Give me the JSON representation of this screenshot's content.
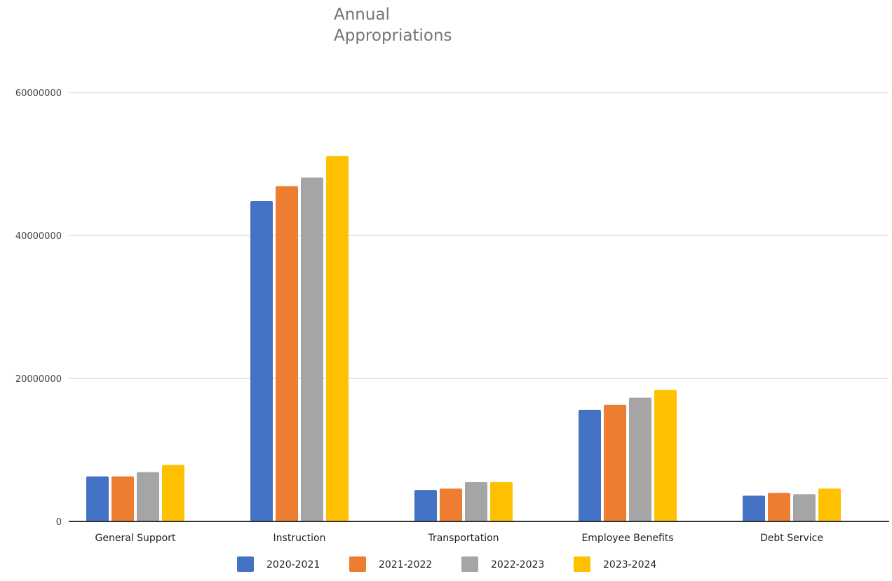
{
  "chart_data": {
    "type": "bar",
    "title": [
      "Annual",
      "Appropriations"
    ],
    "xlabel": "",
    "ylabel": "",
    "categories": [
      "General Support",
      "Instruction",
      "Transportation",
      "Employee Benefits",
      "Debt Service"
    ],
    "series": [
      {
        "name": "2020-2021",
        "color": "#4472C4",
        "values": [
          6300000,
          44800000,
          4400000,
          15600000,
          3600000
        ]
      },
      {
        "name": "2021-2022",
        "color": "#ED7D31",
        "values": [
          6300000,
          46900000,
          4600000,
          16300000,
          4000000
        ]
      },
      {
        "name": "2022-2023",
        "color": "#A5A5A5",
        "values": [
          6900000,
          48100000,
          5500000,
          17300000,
          3800000
        ]
      },
      {
        "name": "2023-2024",
        "color": "#FFC000",
        "values": [
          7900000,
          51100000,
          5500000,
          18400000,
          4600000
        ]
      }
    ],
    "yticks": [
      "0",
      "20000000",
      "40000000",
      "60000000"
    ],
    "ylim": [
      0,
      60000000
    ],
    "grid": true,
    "legend_position": "bottom"
  }
}
